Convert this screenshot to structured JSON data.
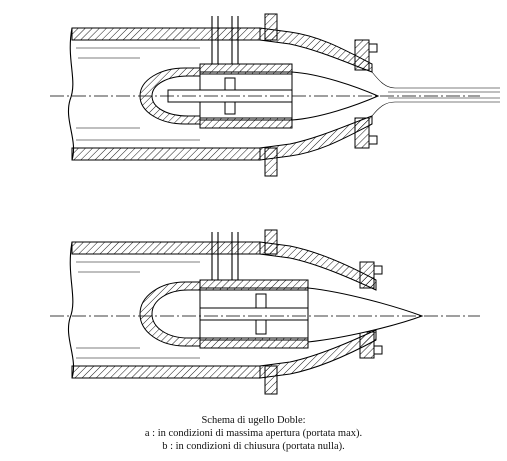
{
  "figure": {
    "panels": [
      "a",
      "b"
    ]
  },
  "caption": {
    "title": "Schema di ugello Doble:",
    "line_a": "a : in condizioni di massima apertura (portata max).",
    "line_b": "b : in condizioni di chiusura (portata nulla)."
  }
}
